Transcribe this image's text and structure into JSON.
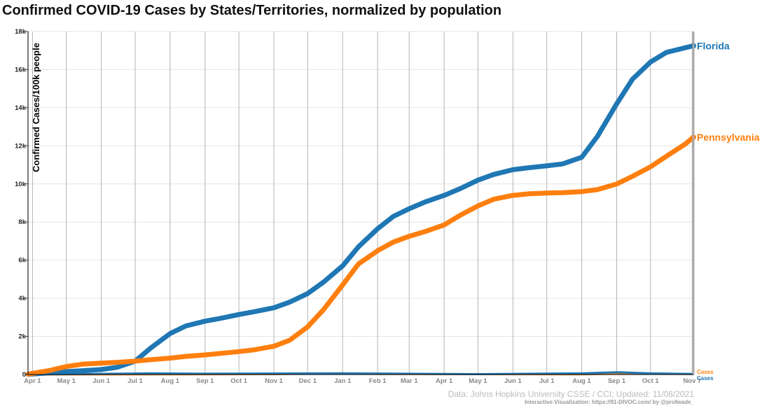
{
  "chart_data": {
    "type": "line",
    "title": "Confirmed COVID-19 Cases by States/Territories, normalized by population",
    "ylabel": "Confirmed Cases/100k people",
    "xlabel": "",
    "ylim": [
      0,
      18000
    ],
    "y_ticks": [
      {
        "value": 0,
        "label": "0"
      },
      {
        "value": 2000,
        "label": "2k"
      },
      {
        "value": 4000,
        "label": "4k"
      },
      {
        "value": 6000,
        "label": "6k"
      },
      {
        "value": 8000,
        "label": "8k"
      },
      {
        "value": 10000,
        "label": "10k"
      },
      {
        "value": 12000,
        "label": "12k"
      },
      {
        "value": 14000,
        "label": "14k"
      },
      {
        "value": 16000,
        "label": "16k"
      },
      {
        "value": 18000,
        "label": "18k"
      }
    ],
    "x_range": [
      "2020-03-28",
      "2021-11-08"
    ],
    "x_ticks": [
      {
        "date": "2020-04-01",
        "label": "Apr 1"
      },
      {
        "date": "2020-05-01",
        "label": "May 1"
      },
      {
        "date": "2020-06-01",
        "label": "Jun 1"
      },
      {
        "date": "2020-07-01",
        "label": "Jul 1"
      },
      {
        "date": "2020-08-01",
        "label": "Aug 1"
      },
      {
        "date": "2020-09-01",
        "label": "Sep 1"
      },
      {
        "date": "2020-10-01",
        "label": "Oct 1"
      },
      {
        "date": "2020-11-01",
        "label": "Nov 1"
      },
      {
        "date": "2020-12-01",
        "label": "Dec 1"
      },
      {
        "date": "2021-01-01",
        "label": "Jan 1"
      },
      {
        "date": "2021-02-01",
        "label": "Feb 1"
      },
      {
        "date": "2021-03-01",
        "label": "Mar 1"
      },
      {
        "date": "2021-04-01",
        "label": "Apr 1"
      },
      {
        "date": "2021-05-01",
        "label": "May 1"
      },
      {
        "date": "2021-06-01",
        "label": "Jun 1"
      },
      {
        "date": "2021-07-01",
        "label": "Jul 1"
      },
      {
        "date": "2021-08-01",
        "label": "Aug 1"
      },
      {
        "date": "2021-09-01",
        "label": "Sep 1"
      },
      {
        "date": "2021-10-01",
        "label": "Oct 1"
      },
      {
        "date": "2021-11-07",
        "label": "Nov 7"
      }
    ],
    "grid": true,
    "series": [
      {
        "name": "Florida",
        "color": "#1f77b4",
        "points": [
          [
            "2020-03-28",
            10
          ],
          [
            "2020-04-15",
            80
          ],
          [
            "2020-05-01",
            150
          ],
          [
            "2020-05-15",
            200
          ],
          [
            "2020-06-01",
            260
          ],
          [
            "2020-06-15",
            380
          ],
          [
            "2020-07-01",
            700
          ],
          [
            "2020-07-15",
            1400
          ],
          [
            "2020-08-01",
            2150
          ],
          [
            "2020-08-15",
            2550
          ],
          [
            "2020-09-01",
            2800
          ],
          [
            "2020-09-15",
            2950
          ],
          [
            "2020-10-01",
            3150
          ],
          [
            "2020-10-15",
            3300
          ],
          [
            "2020-11-01",
            3500
          ],
          [
            "2020-11-15",
            3800
          ],
          [
            "2020-12-01",
            4250
          ],
          [
            "2020-12-15",
            4850
          ],
          [
            "2021-01-01",
            5700
          ],
          [
            "2021-01-15",
            6700
          ],
          [
            "2021-02-01",
            7650
          ],
          [
            "2021-02-15",
            8300
          ],
          [
            "2021-03-01",
            8700
          ],
          [
            "2021-03-15",
            9050
          ],
          [
            "2021-04-01",
            9400
          ],
          [
            "2021-04-15",
            9750
          ],
          [
            "2021-05-01",
            10200
          ],
          [
            "2021-05-15",
            10500
          ],
          [
            "2021-06-01",
            10750
          ],
          [
            "2021-06-15",
            10850
          ],
          [
            "2021-07-01",
            10950
          ],
          [
            "2021-07-15",
            11050
          ],
          [
            "2021-08-01",
            11400
          ],
          [
            "2021-08-15",
            12500
          ],
          [
            "2021-09-01",
            14200
          ],
          [
            "2021-09-15",
            15500
          ],
          [
            "2021-10-01",
            16400
          ],
          [
            "2021-10-15",
            16900
          ],
          [
            "2021-11-01",
            17150
          ],
          [
            "2021-11-08",
            17250
          ]
        ]
      },
      {
        "name": "Pennsylvania",
        "color": "#ff7f0e",
        "points": [
          [
            "2020-03-28",
            20
          ],
          [
            "2020-04-15",
            200
          ],
          [
            "2020-05-01",
            420
          ],
          [
            "2020-05-15",
            540
          ],
          [
            "2020-06-01",
            600
          ],
          [
            "2020-06-15",
            640
          ],
          [
            "2020-07-01",
            700
          ],
          [
            "2020-07-15",
            780
          ],
          [
            "2020-08-01",
            860
          ],
          [
            "2020-08-15",
            950
          ],
          [
            "2020-09-01",
            1030
          ],
          [
            "2020-09-15",
            1110
          ],
          [
            "2020-10-01",
            1200
          ],
          [
            "2020-10-15",
            1300
          ],
          [
            "2020-11-01",
            1480
          ],
          [
            "2020-11-15",
            1800
          ],
          [
            "2020-12-01",
            2500
          ],
          [
            "2020-12-15",
            3400
          ],
          [
            "2021-01-01",
            4700
          ],
          [
            "2021-01-15",
            5800
          ],
          [
            "2021-02-01",
            6500
          ],
          [
            "2021-02-15",
            6950
          ],
          [
            "2021-03-01",
            7250
          ],
          [
            "2021-03-15",
            7500
          ],
          [
            "2021-04-01",
            7850
          ],
          [
            "2021-04-15",
            8350
          ],
          [
            "2021-05-01",
            8850
          ],
          [
            "2021-05-15",
            9200
          ],
          [
            "2021-06-01",
            9400
          ],
          [
            "2021-06-15",
            9480
          ],
          [
            "2021-07-01",
            9520
          ],
          [
            "2021-07-15",
            9540
          ],
          [
            "2021-08-01",
            9600
          ],
          [
            "2021-08-15",
            9700
          ],
          [
            "2021-09-01",
            10000
          ],
          [
            "2021-09-15",
            10400
          ],
          [
            "2021-10-01",
            10900
          ],
          [
            "2021-10-15",
            11450
          ],
          [
            "2021-11-01",
            12100
          ],
          [
            "2021-11-08",
            12450
          ]
        ]
      }
    ],
    "daily_cases": [
      {
        "name": "Cases",
        "color": "#ff7f0e",
        "points": [
          [
            "2020-03-28",
            0
          ],
          [
            "2020-11-01",
            20
          ],
          [
            "2021-01-01",
            60
          ],
          [
            "2021-02-01",
            30
          ],
          [
            "2021-08-01",
            10
          ],
          [
            "2021-09-01",
            40
          ],
          [
            "2021-11-08",
            30
          ]
        ]
      },
      {
        "name": "Cases",
        "color": "#1f77b4",
        "points": [
          [
            "2020-03-28",
            0
          ],
          [
            "2020-07-15",
            60
          ],
          [
            "2020-09-01",
            40
          ],
          [
            "2021-01-01",
            60
          ],
          [
            "2021-02-01",
            50
          ],
          [
            "2021-05-01",
            20
          ],
          [
            "2021-08-01",
            60
          ],
          [
            "2021-09-01",
            120
          ],
          [
            "2021-10-01",
            60
          ],
          [
            "2021-11-08",
            30
          ]
        ]
      }
    ]
  },
  "footer": {
    "source": "Data: Johns Hopkins University CSSE / CCI; Updated: 11/08/2021",
    "credit": "Interactive Visualization: https://91-DIVOC.com/ by @profwade_"
  }
}
